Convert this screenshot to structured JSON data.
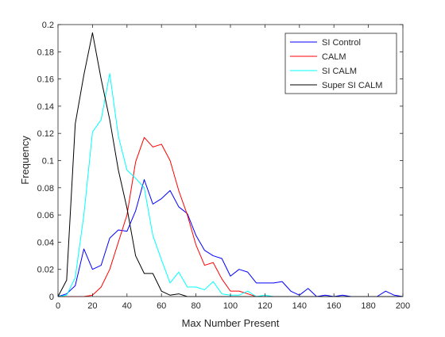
{
  "chart_data": {
    "type": "line",
    "title": "",
    "xlabel": "Max Number Present",
    "ylabel": "Frequency",
    "xlim": [
      0,
      200
    ],
    "ylim": [
      0,
      0.2
    ],
    "xticks": [
      0,
      20,
      40,
      60,
      80,
      100,
      120,
      140,
      160,
      180,
      200
    ],
    "yticks": [
      0,
      0.02,
      0.04,
      0.06,
      0.08,
      0.1,
      0.12,
      0.14,
      0.16,
      0.18,
      0.2
    ],
    "xtick_labels": [
      "0",
      "20",
      "40",
      "60",
      "80",
      "100",
      "120",
      "140",
      "160",
      "180",
      "200"
    ],
    "ytick_labels": [
      "0",
      "0.02",
      "0.04",
      "0.06",
      "0.08",
      "0.1",
      "0.12",
      "0.14",
      "0.16",
      "0.18",
      "0.2"
    ],
    "grid": false,
    "legend_position": "top-right",
    "series": [
      {
        "name": "SI Control",
        "color": "#0000ff",
        "points": [
          [
            0,
            0
          ],
          [
            5,
            0.002
          ],
          [
            10,
            0.008
          ],
          [
            15,
            0.035
          ],
          [
            20,
            0.02
          ],
          [
            25,
            0.023
          ],
          [
            30,
            0.043
          ],
          [
            35,
            0.049
          ],
          [
            40,
            0.048
          ],
          [
            45,
            0.063
          ],
          [
            50,
            0.086
          ],
          [
            55,
            0.068
          ],
          [
            60,
            0.072
          ],
          [
            65,
            0.078
          ],
          [
            70,
            0.066
          ],
          [
            75,
            0.061
          ],
          [
            80,
            0.045
          ],
          [
            85,
            0.034
          ],
          [
            90,
            0.03
          ],
          [
            95,
            0.028
          ],
          [
            100,
            0.015
          ],
          [
            105,
            0.02
          ],
          [
            110,
            0.018
          ],
          [
            115,
            0.01
          ],
          [
            120,
            0.01
          ],
          [
            125,
            0.01
          ],
          [
            130,
            0.011
          ],
          [
            135,
            0.004
          ],
          [
            140,
            0.001
          ],
          [
            145,
            0.006
          ],
          [
            150,
            0
          ],
          [
            155,
            0.001
          ],
          [
            160,
            0
          ],
          [
            165,
            0.001
          ],
          [
            170,
            0
          ],
          [
            175,
            0
          ],
          [
            180,
            0
          ],
          [
            185,
            0
          ],
          [
            190,
            0.004
          ],
          [
            195,
            0.001
          ],
          [
            200,
            0
          ]
        ]
      },
      {
        "name": "CALM",
        "color": "#ff0000",
        "points": [
          [
            0,
            0
          ],
          [
            5,
            0
          ],
          [
            10,
            0
          ],
          [
            15,
            0
          ],
          [
            20,
            0.001
          ],
          [
            25,
            0.007
          ],
          [
            30,
            0.02
          ],
          [
            35,
            0.04
          ],
          [
            40,
            0.06
          ],
          [
            45,
            0.099
          ],
          [
            50,
            0.117
          ],
          [
            55,
            0.11
          ],
          [
            60,
            0.112
          ],
          [
            65,
            0.1
          ],
          [
            70,
            0.078
          ],
          [
            75,
            0.06
          ],
          [
            80,
            0.038
          ],
          [
            85,
            0.023
          ],
          [
            90,
            0.025
          ],
          [
            95,
            0.013
          ],
          [
            100,
            0.004
          ],
          [
            105,
            0.004
          ],
          [
            110,
            0.002
          ],
          [
            115,
            0
          ],
          [
            120,
            0
          ],
          [
            125,
            0
          ],
          [
            130,
            0
          ],
          [
            135,
            0
          ],
          [
            140,
            0
          ],
          [
            200,
            0
          ]
        ]
      },
      {
        "name": "SI CALM",
        "color": "#00ffff",
        "points": [
          [
            0,
            0
          ],
          [
            5,
            0.001
          ],
          [
            10,
            0.014
          ],
          [
            15,
            0.06
          ],
          [
            20,
            0.121
          ],
          [
            25,
            0.13
          ],
          [
            30,
            0.164
          ],
          [
            35,
            0.118
          ],
          [
            40,
            0.093
          ],
          [
            45,
            0.087
          ],
          [
            50,
            0.08
          ],
          [
            55,
            0.045
          ],
          [
            60,
            0.027
          ],
          [
            65,
            0.01
          ],
          [
            70,
            0.018
          ],
          [
            75,
            0.007
          ],
          [
            80,
            0.007
          ],
          [
            85,
            0.005
          ],
          [
            90,
            0.011
          ],
          [
            95,
            0.002
          ],
          [
            100,
            0.001
          ],
          [
            105,
            0.001
          ],
          [
            110,
            0.004
          ],
          [
            115,
            0
          ],
          [
            120,
            0.001
          ],
          [
            125,
            0
          ],
          [
            130,
            0
          ],
          [
            200,
            0
          ]
        ]
      },
      {
        "name": "Super SI CALM",
        "color": "#000000",
        "points": [
          [
            0,
            0
          ],
          [
            5,
            0.012
          ],
          [
            10,
            0.127
          ],
          [
            15,
            0.163
          ],
          [
            20,
            0.194
          ],
          [
            25,
            0.16
          ],
          [
            30,
            0.13
          ],
          [
            35,
            0.093
          ],
          [
            40,
            0.065
          ],
          [
            45,
            0.03
          ],
          [
            50,
            0.017
          ],
          [
            55,
            0.017
          ],
          [
            60,
            0.004
          ],
          [
            65,
            0.001
          ],
          [
            70,
            0.002
          ],
          [
            75,
            0
          ],
          [
            80,
            0
          ],
          [
            200,
            0
          ]
        ]
      }
    ]
  }
}
